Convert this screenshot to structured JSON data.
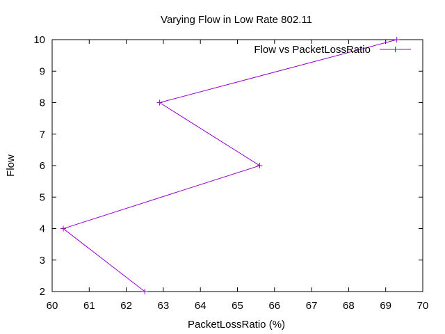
{
  "chart_data": {
    "type": "line",
    "title": "Varying Flow in Low Rate 802.11",
    "xlabel": "PacketLossRatio (%)",
    "ylabel": "Flow",
    "xlim": [
      60,
      70
    ],
    "ylim": [
      2,
      10
    ],
    "xticks": [
      60,
      61,
      62,
      63,
      64,
      65,
      66,
      67,
      68,
      69,
      70
    ],
    "yticks": [
      2,
      3,
      4,
      5,
      6,
      7,
      8,
      9,
      10
    ],
    "grid": false,
    "legend_position": "top-right",
    "series": [
      {
        "name": "Flow vs PacketLossRatio",
        "color": "#9400d3",
        "marker": "plus",
        "points": [
          {
            "x": 62.5,
            "y": 2
          },
          {
            "x": 60.3,
            "y": 4
          },
          {
            "x": 65.6,
            "y": 6
          },
          {
            "x": 62.9,
            "y": 8
          },
          {
            "x": 69.3,
            "y": 10
          }
        ]
      }
    ]
  }
}
